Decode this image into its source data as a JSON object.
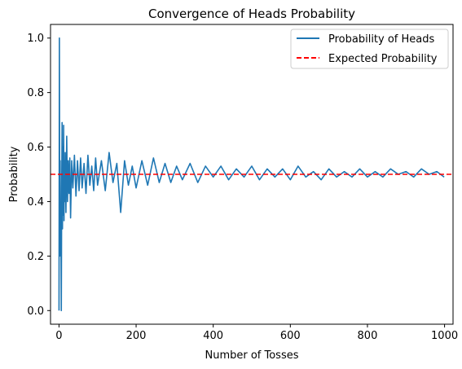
{
  "chart_data": {
    "type": "line",
    "title": "Convergence of Heads Probability",
    "xlabel": "Number of Tosses",
    "ylabel": "Probability",
    "xlim": [
      -22,
      1022
    ],
    "ylim": [
      -0.05,
      1.05
    ],
    "xticks": [
      0,
      200,
      400,
      600,
      800,
      1000
    ],
    "xtick_labels": [
      "0",
      "200",
      "400",
      "600",
      "800",
      "1000"
    ],
    "yticks": [
      0.0,
      0.2,
      0.4,
      0.6,
      0.8,
      1.0
    ],
    "ytick_labels": [
      "0.0",
      "0.2",
      "0.4",
      "0.6",
      "0.8",
      "1.0"
    ],
    "grid": false,
    "legend_position": "top-right",
    "series": [
      {
        "name": "Probability of Heads",
        "color": "#1f77b4",
        "style": "solid",
        "x": [
          0,
          1,
          2,
          3,
          4,
          5,
          6,
          7,
          8,
          9,
          10,
          11,
          12,
          13,
          14,
          15,
          16,
          18,
          20,
          22,
          24,
          26,
          28,
          30,
          33,
          36,
          40,
          44,
          48,
          52,
          56,
          60,
          65,
          70,
          75,
          80,
          85,
          90,
          95,
          100,
          110,
          120,
          130,
          140,
          150,
          160,
          170,
          180,
          190,
          200,
          215,
          230,
          245,
          260,
          275,
          290,
          305,
          320,
          340,
          360,
          380,
          400,
          420,
          440,
          460,
          480,
          500,
          520,
          540,
          560,
          580,
          600,
          620,
          640,
          660,
          680,
          700,
          720,
          740,
          760,
          780,
          800,
          820,
          840,
          860,
          880,
          900,
          920,
          940,
          960,
          980,
          999
        ],
        "y": [
          0.0,
          1.0,
          0.2,
          0.55,
          0.25,
          0.3,
          0.0,
          0.45,
          0.69,
          0.3,
          0.6,
          0.35,
          0.68,
          0.33,
          0.55,
          0.4,
          0.58,
          0.36,
          0.64,
          0.4,
          0.55,
          0.43,
          0.56,
          0.34,
          0.55,
          0.45,
          0.57,
          0.42,
          0.55,
          0.44,
          0.56,
          0.45,
          0.54,
          0.43,
          0.57,
          0.46,
          0.53,
          0.44,
          0.56,
          0.46,
          0.55,
          0.44,
          0.58,
          0.47,
          0.54,
          0.36,
          0.55,
          0.46,
          0.53,
          0.45,
          0.55,
          0.46,
          0.56,
          0.47,
          0.54,
          0.47,
          0.53,
          0.48,
          0.54,
          0.47,
          0.53,
          0.49,
          0.53,
          0.48,
          0.52,
          0.49,
          0.53,
          0.48,
          0.52,
          0.49,
          0.52,
          0.48,
          0.53,
          0.49,
          0.51,
          0.48,
          0.52,
          0.49,
          0.51,
          0.49,
          0.52,
          0.49,
          0.51,
          0.49,
          0.52,
          0.5,
          0.51,
          0.49,
          0.52,
          0.5,
          0.51,
          0.49
        ]
      },
      {
        "name": "Expected Probability",
        "color": "#ff0000",
        "style": "dashed",
        "y": 0.5
      }
    ]
  }
}
